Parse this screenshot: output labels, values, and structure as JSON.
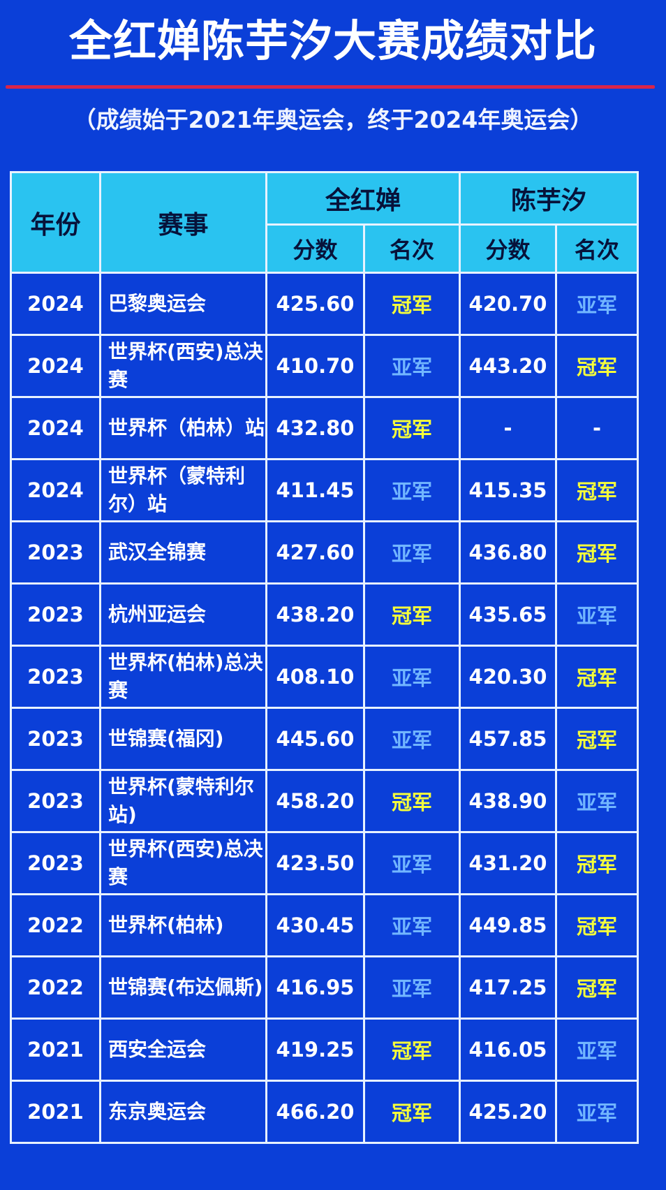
{
  "title": "全红婵陈芋汐大赛成绩对比",
  "subtitle": "（成绩始于2021年奥运会，终于2024年奥运会）",
  "colors": {
    "background": "#0b3fd8",
    "header": "#2ac3f0",
    "divider": "#d8254a",
    "champion": "#f6ff3a",
    "runner_up": "#72b6ff"
  },
  "headers": {
    "year": "年份",
    "event": "赛事",
    "athlete1": "全红婵",
    "athlete2": "陈芋汐",
    "score": "分数",
    "rank": "名次"
  },
  "rows": [
    {
      "year": "2024",
      "event": "巴黎奥运会",
      "s1": "425.60",
      "r1": "冠军",
      "s2": "420.70",
      "r2": "亚军"
    },
    {
      "year": "2024",
      "event": "世界杯(西安)总决赛",
      "s1": "410.70",
      "r1": "亚军",
      "s2": "443.20",
      "r2": "冠军"
    },
    {
      "year": "2024",
      "event": "世界杯（柏林）站",
      "s1": "432.80",
      "r1": "冠军",
      "s2": "-",
      "r2": "-"
    },
    {
      "year": "2024",
      "event": "世界杯（蒙特利尔）站",
      "s1": "411.45",
      "r1": "亚军",
      "s2": "415.35",
      "r2": "冠军"
    },
    {
      "year": "2023",
      "event": "武汉全锦赛",
      "s1": "427.60",
      "r1": "亚军",
      "s2": "436.80",
      "r2": "冠军"
    },
    {
      "year": "2023",
      "event": "杭州亚运会",
      "s1": "438.20",
      "r1": "冠军",
      "s2": "435.65",
      "r2": "亚军"
    },
    {
      "year": "2023",
      "event": "世界杯(柏林)总决赛",
      "s1": "408.10",
      "r1": "亚军",
      "s2": "420.30",
      "r2": "冠军"
    },
    {
      "year": "2023",
      "event": "世锦赛(福冈)",
      "s1": "445.60",
      "r1": "亚军",
      "s2": "457.85",
      "r2": "冠军"
    },
    {
      "year": "2023",
      "event": "世界杯(蒙特利尔站)",
      "s1": "458.20",
      "r1": "冠军",
      "s2": "438.90",
      "r2": "亚军"
    },
    {
      "year": "2023",
      "event": "世界杯(西安)总决赛",
      "s1": "423.50",
      "r1": "亚军",
      "s2": "431.20",
      "r2": "冠军"
    },
    {
      "year": "2022",
      "event": "世界杯(柏林)",
      "s1": "430.45",
      "r1": "亚军",
      "s2": "449.85",
      "r2": "冠军"
    },
    {
      "year": "2022",
      "event": "世锦赛(布达佩斯)",
      "s1": "416.95",
      "r1": "亚军",
      "s2": "417.25",
      "r2": "冠军"
    },
    {
      "year": "2021",
      "event": "西安全运会",
      "s1": "419.25",
      "r1": "冠军",
      "s2": "416.05",
      "r2": "亚军"
    },
    {
      "year": "2021",
      "event": "东京奥运会",
      "s1": "466.20",
      "r1": "冠军",
      "s2": "425.20",
      "r2": "亚军"
    }
  ]
}
